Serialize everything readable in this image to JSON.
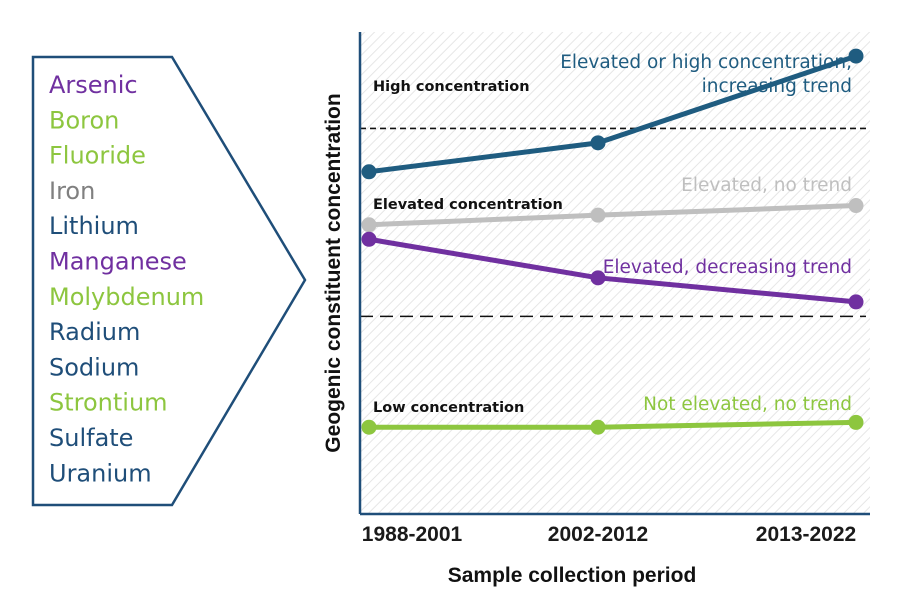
{
  "legend_panel": {
    "constituents": [
      {
        "name": "Arsenic",
        "color": "#7030a0"
      },
      {
        "name": "Boron",
        "color": "#8dc63f"
      },
      {
        "name": "Fluoride",
        "color": "#8dc63f"
      },
      {
        "name": "Iron",
        "color": "#808080"
      },
      {
        "name": "Lithium",
        "color": "#1f4e79"
      },
      {
        "name": "Manganese",
        "color": "#7030a0"
      },
      {
        "name": "Molybdenum",
        "color": "#8dc63f"
      },
      {
        "name": "Radium",
        "color": "#1f4e79"
      },
      {
        "name": "Sodium",
        "color": "#1f4e79"
      },
      {
        "name": "Strontium",
        "color": "#8dc63f"
      },
      {
        "name": "Sulfate",
        "color": "#1f4e79"
      },
      {
        "name": "Uranium",
        "color": "#1f4e79"
      }
    ],
    "border_color": "#1f4e79"
  },
  "chart": {
    "y_axis_label": "Geogenic constituent concentration",
    "x_axis_label": "Sample collection period",
    "zones": {
      "high": "High concentration",
      "elevated": "Elevated concentration",
      "low": "Low concentration"
    },
    "background_hatch_color": "#e4e4e4",
    "axis_color": "#1f4e79"
  },
  "chart_data": {
    "type": "line",
    "categories": [
      "1988-2001",
      "2002-2012",
      "2013-2022"
    ],
    "ylim": [
      0,
      100
    ],
    "thresholds": [
      {
        "name": "high",
        "value": 80,
        "style": "short-dash"
      },
      {
        "name": "elevated",
        "value": 41,
        "style": "long-dash"
      }
    ],
    "series": [
      {
        "name": "Elevated or high concentration, increasing trend",
        "values": [
          71,
          77,
          95
        ],
        "color": "#1f5c80"
      },
      {
        "name": "Elevated, no trend",
        "values": [
          60,
          62,
          64
        ],
        "color": "#bfbfbf"
      },
      {
        "name": "Elevated, decreasing trend",
        "values": [
          57,
          49,
          44
        ],
        "color": "#7030a0"
      },
      {
        "name": "Not elevated, no trend",
        "values": [
          18,
          18,
          19
        ],
        "color": "#8dc63f"
      }
    ],
    "annotations": [
      {
        "series": "Elevated or high concentration, increasing trend",
        "lines": [
          "Elevated or high concentration,",
          "increasing trend"
        ]
      },
      {
        "series": "Elevated, no trend",
        "lines": [
          "Elevated, no trend"
        ]
      },
      {
        "series": "Elevated, decreasing trend",
        "lines": [
          "Elevated, decreasing trend"
        ]
      },
      {
        "series": "Not elevated, no trend",
        "lines": [
          "Not elevated, no trend"
        ]
      }
    ]
  }
}
